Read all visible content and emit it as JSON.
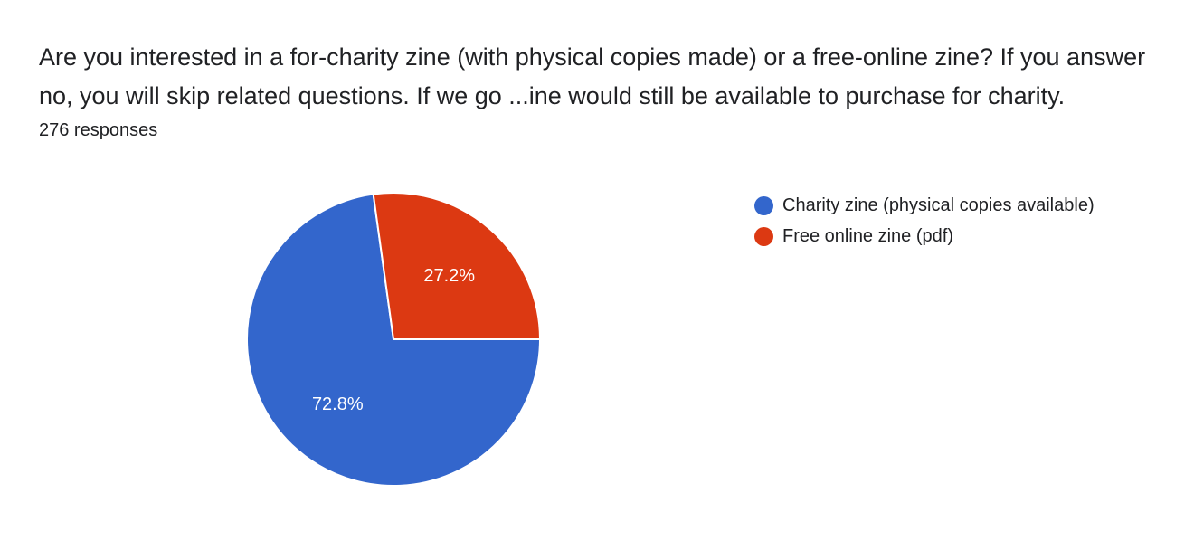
{
  "question": {
    "title": "Are you interested in a for-charity zine (with physical copies made) or a free-online zine? If you answer no, you will skip related questions. If we go ...ine would still be available to purchase for charity.",
    "responses": "276 responses"
  },
  "chart_data": {
    "type": "pie",
    "categories": [
      "Charity zine (physical copies available)",
      "Free online zine (pdf)"
    ],
    "values": [
      72.8,
      27.2
    ],
    "labels": [
      "72.8%",
      "27.2%"
    ],
    "colors": [
      "#3366cc",
      "#dc3912"
    ],
    "legend_position": "right"
  }
}
